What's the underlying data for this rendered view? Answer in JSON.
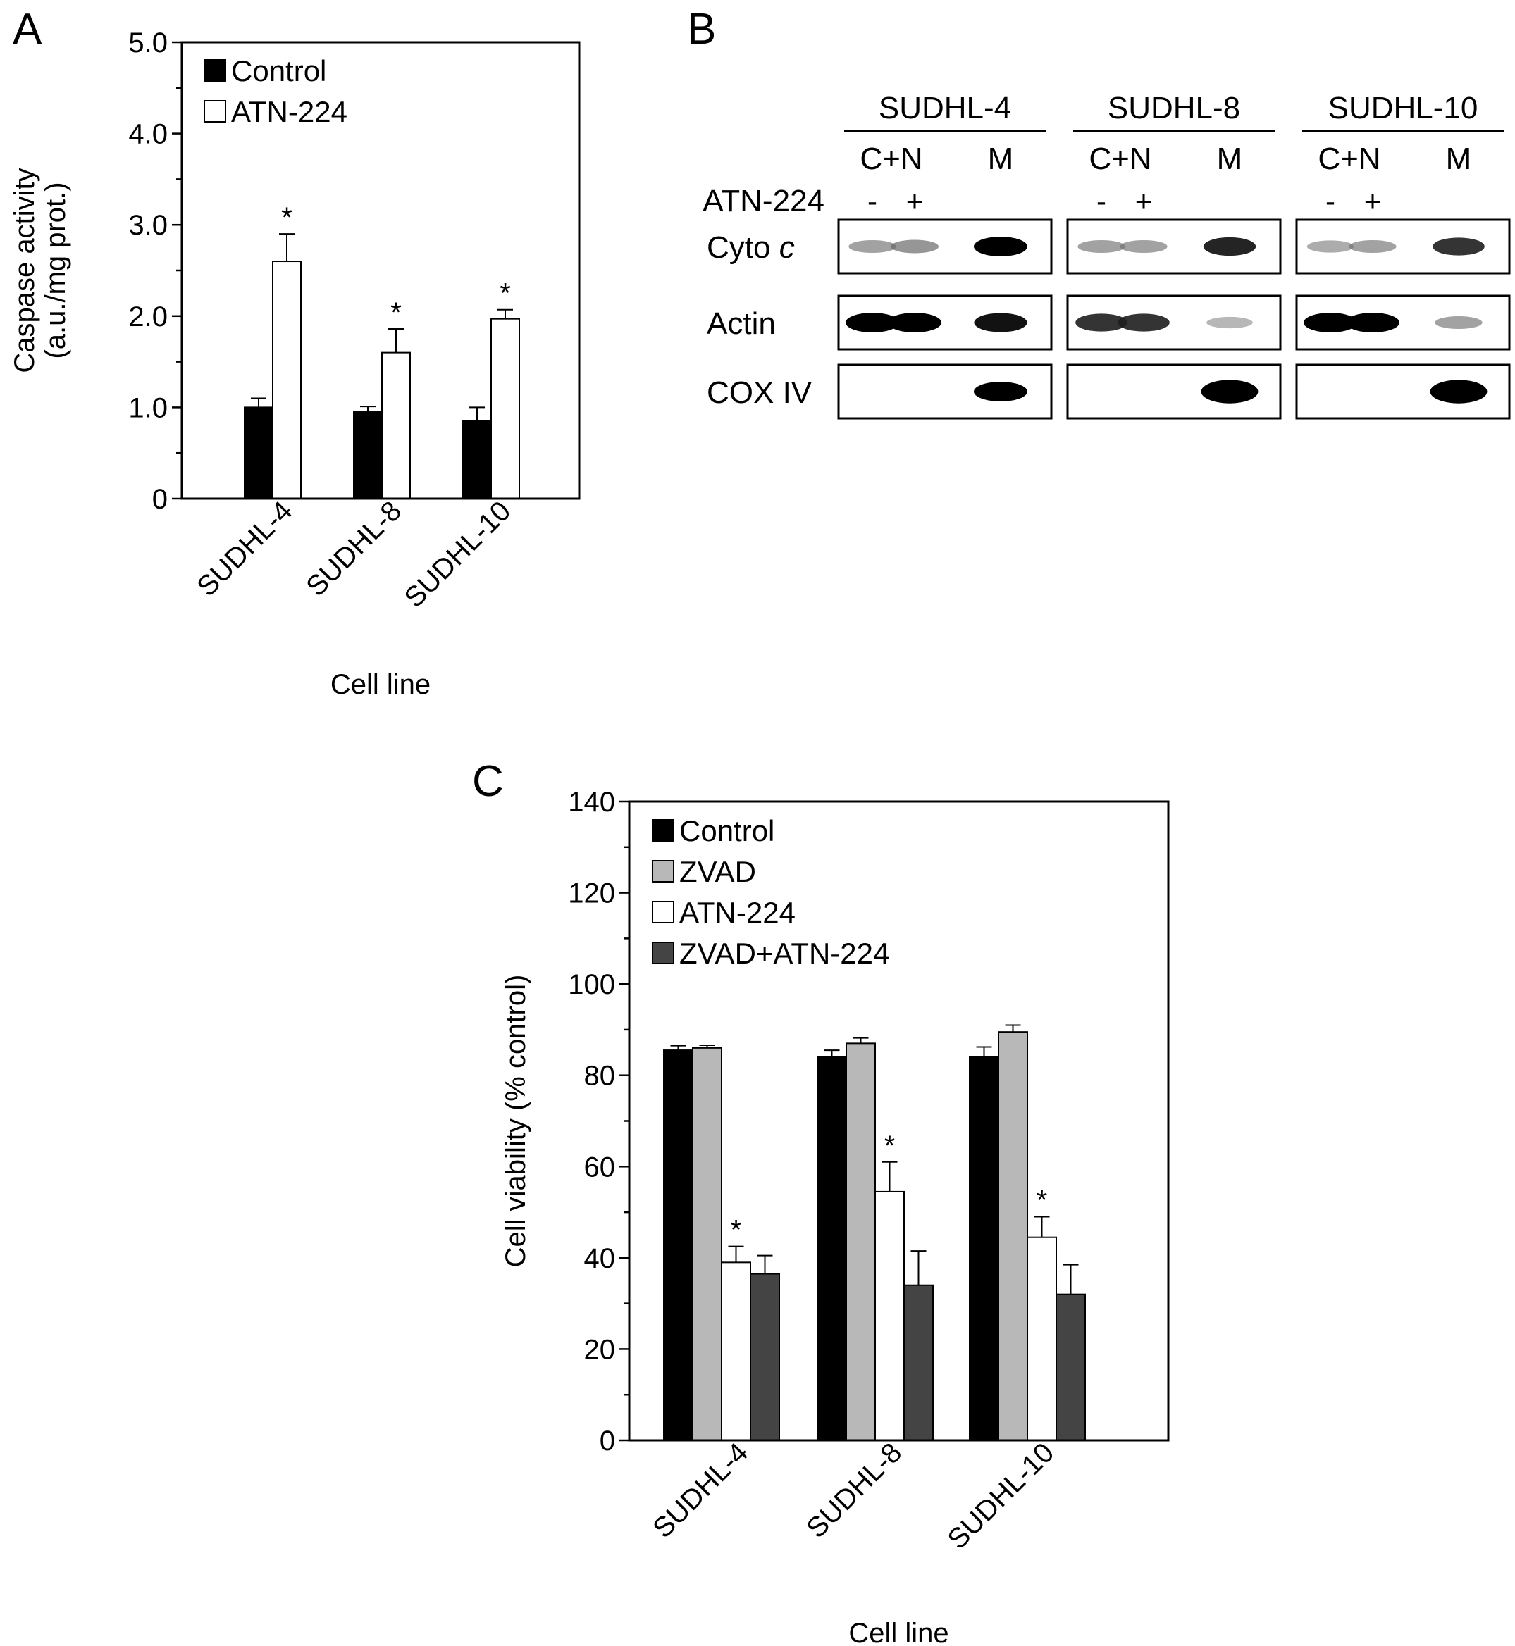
{
  "panels": {
    "a": {
      "letter": "A"
    },
    "b": {
      "letter": "B"
    },
    "c": {
      "letter": "C"
    }
  },
  "chart_data": [
    {
      "id": "A",
      "type": "bar",
      "categories": [
        "SUDHL-4",
        "SUDHL-8",
        "SUDHL-10"
      ],
      "series": [
        {
          "name": "Control",
          "values": [
            1.0,
            0.95,
            0.85
          ],
          "errors": [
            0.1,
            0.06,
            0.15
          ],
          "color": "#000000"
        },
        {
          "name": "ATN-224",
          "values": [
            2.6,
            1.6,
            1.97
          ],
          "errors": [
            0.3,
            0.26,
            0.1
          ],
          "color": "#ffffff",
          "significant": [
            true,
            true,
            true
          ]
        }
      ],
      "significance_marker": "*",
      "xlabel": "Cell line",
      "ylabel": [
        "Caspase activity",
        "(a.u./mg prot.)"
      ],
      "ylim": [
        0,
        5.0
      ],
      "yticks": [
        0,
        1.0,
        2.0,
        3.0,
        4.0,
        5.0
      ],
      "ytick_labels": [
        "0",
        "1.0",
        "2.0",
        "3.0",
        "4.0",
        "5.0"
      ],
      "legend_position": "top-left",
      "grid": false
    },
    {
      "id": "C",
      "type": "bar",
      "categories": [
        "SUDHL-4",
        "SUDHL-8",
        "SUDHL-10"
      ],
      "series": [
        {
          "name": "Control",
          "values": [
            85.5,
            84,
            84
          ],
          "errors": [
            1,
            1.5,
            2.2
          ],
          "color": "#000000"
        },
        {
          "name": "ZVAD",
          "values": [
            86,
            87,
            89.5
          ],
          "errors": [
            0.6,
            1.2,
            1.5
          ],
          "color": "#b8b8b8"
        },
        {
          "name": "ATN-224",
          "values": [
            39,
            54.5,
            44.5
          ],
          "errors": [
            3.5,
            6.5,
            4.5
          ],
          "color": "#ffffff",
          "significant": [
            true,
            true,
            true
          ]
        },
        {
          "name": "ZVAD+ATN-224",
          "values": [
            36.5,
            34,
            32
          ],
          "errors": [
            4,
            7.5,
            6.5
          ],
          "color": "#444444"
        }
      ],
      "significance_marker": "*",
      "xlabel": "Cell line",
      "ylabel": "Cell viability (% control)",
      "ylim": [
        0,
        140
      ],
      "yticks": [
        0,
        20,
        40,
        60,
        80,
        100,
        120,
        140
      ],
      "ytick_labels": [
        "0",
        "20",
        "40",
        "60",
        "80",
        "100",
        "120",
        "140"
      ],
      "legend_position": "top-left",
      "grid": false
    }
  ],
  "blot": {
    "cell_lines": [
      "SUDHL-4",
      "SUDHL-8",
      "SUDHL-10"
    ],
    "fractions": [
      "C+N",
      "M"
    ],
    "treatment_label": "ATN-224",
    "treatment_signs": [
      "-",
      "+"
    ],
    "rows": [
      {
        "label_main": "Cyto ",
        "label_italic": "c",
        "bands": [
          [
            0.45,
            0.5,
            1.0
          ],
          [
            0.45,
            0.45,
            0.9
          ],
          [
            0.4,
            0.45,
            0.85
          ]
        ]
      },
      {
        "label_main": "Actin",
        "label_italic": "",
        "bands": [
          [
            1.0,
            1.0,
            0.95
          ],
          [
            0.85,
            0.85,
            0.35
          ],
          [
            1.0,
            1.0,
            0.45
          ]
        ]
      },
      {
        "label_main": "COX IV",
        "label_italic": "",
        "bands": [
          [
            0,
            0,
            1.0
          ],
          [
            0,
            0,
            1.3
          ],
          [
            0,
            0,
            1.3
          ]
        ]
      }
    ]
  }
}
